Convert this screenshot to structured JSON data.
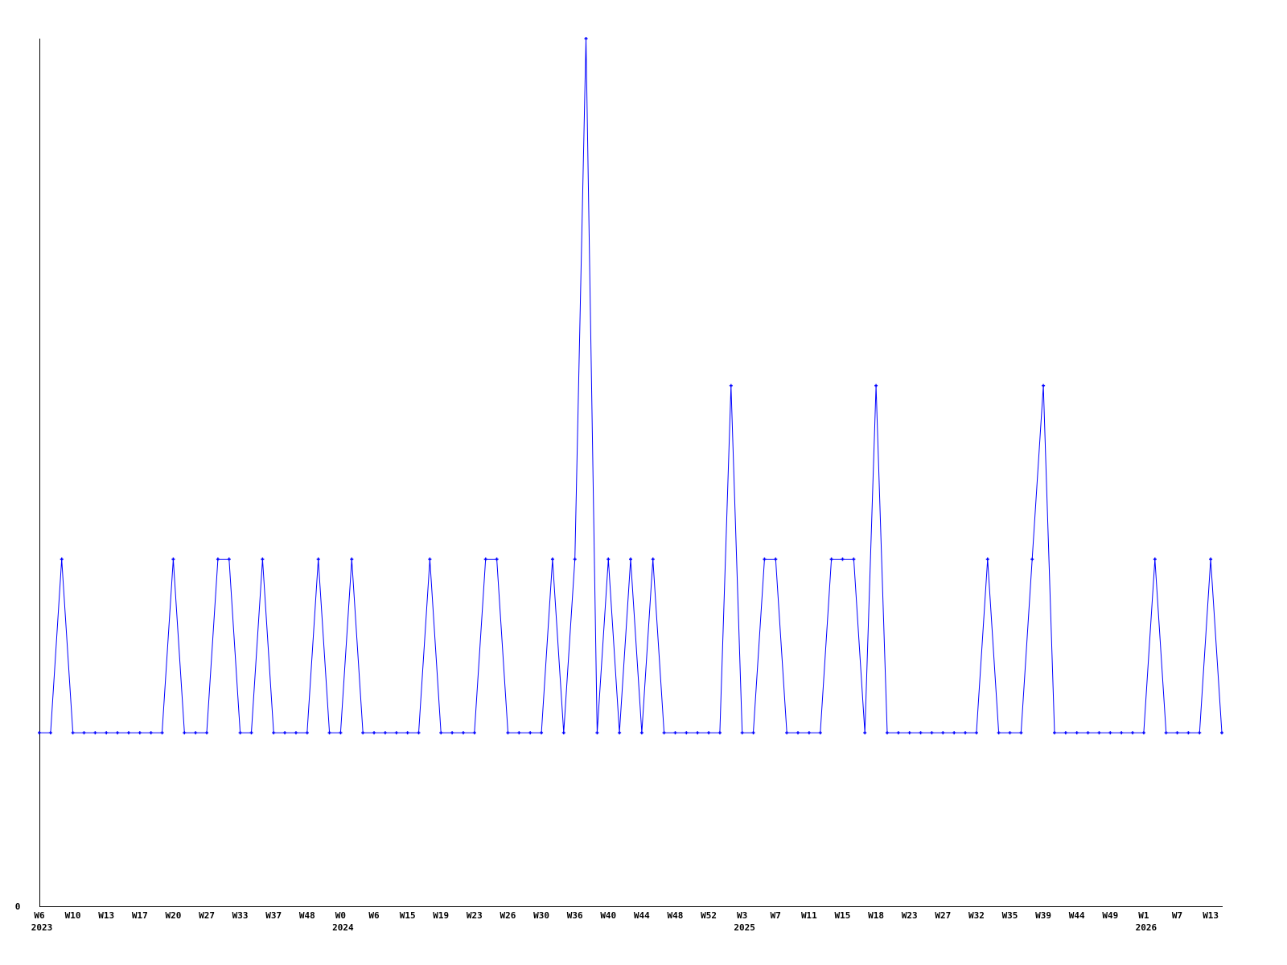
{
  "chart_data": {
    "type": "line",
    "title": "",
    "xlabel": "",
    "ylabel": "",
    "ylim": [
      0,
      5
    ],
    "y_tick_labels": [
      "0"
    ],
    "grid": false,
    "legend": "none",
    "line_color": "#0000ff",
    "axis_color": "#000000",
    "x_tick_labels": [
      "W6",
      "W10",
      "W13",
      "W17",
      "W20",
      "W27",
      "W33",
      "W37",
      "W48",
      "W0",
      "W6",
      "W15",
      "W19",
      "W23",
      "W26",
      "W30",
      "W36",
      "W40",
      "W44",
      "W48",
      "W52",
      "W3",
      "W7",
      "W11",
      "W15",
      "W18",
      "W23",
      "W27",
      "W32",
      "W35",
      "W39",
      "W44",
      "W49",
      "W1",
      "W7",
      "W13"
    ],
    "year_labels": [
      {
        "label": "2023",
        "tick_index": 0
      },
      {
        "label": "2024",
        "tick_index": 9
      },
      {
        "label": "2025",
        "tick_index": 21
      },
      {
        "label": "2026",
        "tick_index": 33
      }
    ],
    "series": [
      {
        "values": [
          1,
          1,
          2,
          1,
          1,
          1,
          1,
          1,
          1,
          1,
          1,
          1,
          2,
          1,
          1,
          1,
          2,
          2,
          1,
          1,
          2,
          1,
          1,
          1,
          1,
          2,
          1,
          1,
          2,
          1,
          1,
          1,
          1,
          1,
          1,
          2,
          1,
          1,
          1,
          1,
          2,
          2,
          1,
          1,
          1,
          1,
          2,
          1,
          2,
          5,
          1,
          2,
          1,
          2,
          1,
          2,
          1,
          1,
          1,
          1,
          1,
          1,
          3,
          1,
          1,
          2,
          2,
          1,
          1,
          1,
          1,
          2,
          2,
          2,
          1,
          3,
          1,
          1,
          1,
          1,
          1,
          1,
          1,
          1,
          1,
          2,
          1,
          1,
          1,
          2,
          3,
          1,
          1,
          1,
          1,
          1,
          1,
          1,
          1,
          1,
          2,
          1,
          1,
          1,
          1,
          2,
          1
        ]
      }
    ]
  }
}
